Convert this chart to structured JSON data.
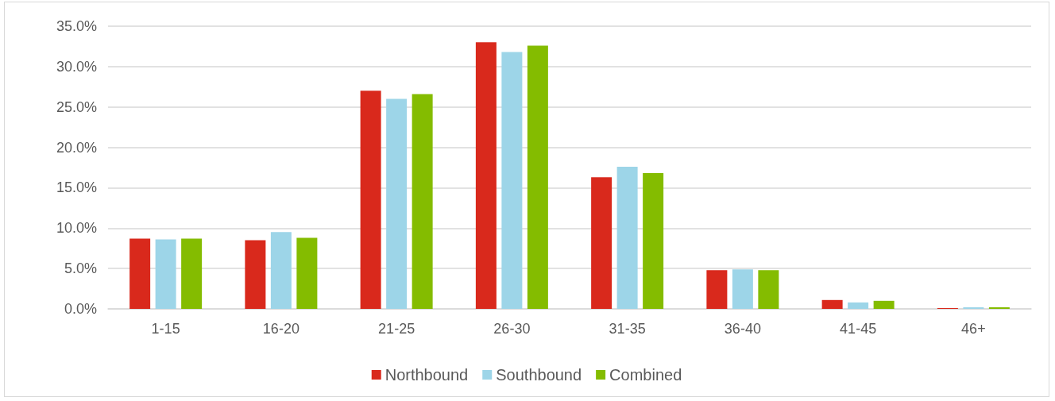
{
  "chart_data": {
    "type": "bar",
    "categories": [
      "1-15",
      "16-20",
      "21-25",
      "26-30",
      "31-35",
      "36-40",
      "41-45",
      "46+"
    ],
    "series": [
      {
        "name": "Northbound",
        "color": "#d9291c",
        "values": [
          8.7,
          8.5,
          27.0,
          33.0,
          16.3,
          4.8,
          1.1,
          0.1
        ]
      },
      {
        "name": "Southbound",
        "color": "#9dd5e8",
        "values": [
          8.6,
          9.5,
          26.0,
          31.8,
          17.6,
          4.9,
          0.8,
          0.2
        ]
      },
      {
        "name": "Combined",
        "color": "#84bc00",
        "values": [
          8.7,
          8.8,
          26.6,
          32.6,
          16.8,
          4.8,
          1.0,
          0.2
        ]
      }
    ],
    "ylim": [
      0,
      35
    ],
    "yticks": [
      {
        "value": 0,
        "label": "0.0%"
      },
      {
        "value": 5,
        "label": "5.0%"
      },
      {
        "value": 10,
        "label": "10.0%"
      },
      {
        "value": 15,
        "label": "15.0%"
      },
      {
        "value": 20,
        "label": "20.0%"
      },
      {
        "value": 25,
        "label": "25.0%"
      },
      {
        "value": 30,
        "label": "30.0%"
      },
      {
        "value": 35,
        "label": "35.0%"
      }
    ],
    "grid": "y",
    "legend": "bottom"
  }
}
